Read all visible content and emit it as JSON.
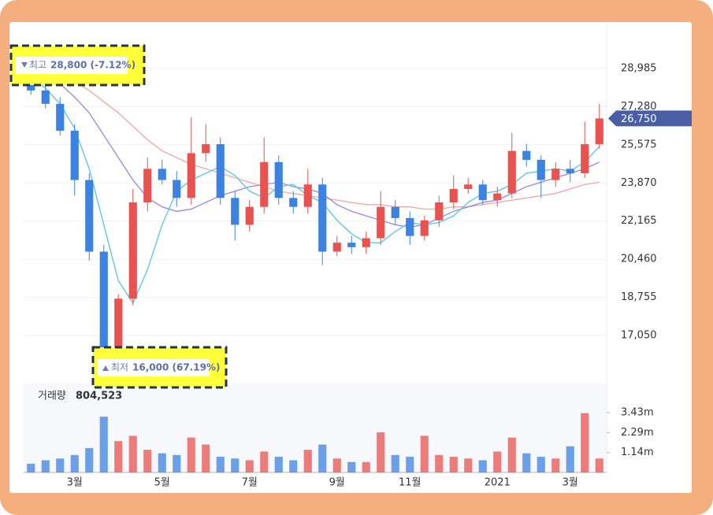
{
  "chart_data": {
    "type": "candlestick",
    "categories": [
      "",
      "",
      "",
      "3월",
      "",
      "",
      "",
      "",
      "",
      "5월",
      "",
      "",
      "",
      "",
      "",
      "7월",
      "",
      "",
      "",
      "",
      "",
      "9월",
      "",
      "",
      "",
      "",
      "11월",
      "",
      "",
      "",
      "",
      "",
      "2021",
      "",
      "",
      "",
      "",
      "3월",
      "",
      ""
    ],
    "open": [
      28500,
      28000,
      27400,
      26200,
      24000,
      20800,
      16500,
      18700,
      23000,
      24500,
      24000,
      23200,
      25200,
      25600,
      23200,
      22000,
      22800,
      24800,
      23200,
      22800,
      23800,
      20800,
      21200,
      21000,
      21400,
      22800,
      22300,
      21500,
      22200,
      23000,
      23600,
      23800,
      23100,
      23400,
      25300,
      24900,
      24000,
      24500,
      24300,
      25600
    ],
    "high": [
      28800,
      28300,
      27700,
      26500,
      24300,
      21100,
      18900,
      23600,
      25000,
      24900,
      24400,
      26800,
      26500,
      25900,
      23500,
      23100,
      25900,
      25100,
      23500,
      24500,
      24100,
      21500,
      21500,
      21700,
      23500,
      23100,
      22600,
      22400,
      23300,
      24200,
      24100,
      24000,
      23700,
      26100,
      25600,
      25100,
      24800,
      24900,
      26600,
      27400
    ],
    "low": [
      27800,
      27200,
      26000,
      23300,
      20400,
      16000,
      16200,
      18400,
      22600,
      23800,
      22800,
      22900,
      24800,
      22900,
      21300,
      21700,
      22500,
      22900,
      22500,
      22500,
      20200,
      20600,
      20700,
      20700,
      21100,
      22000,
      21100,
      21300,
      21900,
      22700,
      23400,
      22900,
      22800,
      23200,
      24600,
      23200,
      23700,
      23900,
      24100,
      25400
    ],
    "close": [
      28000,
      27400,
      26200,
      24000,
      20800,
      16500,
      18700,
      23000,
      24500,
      24000,
      23200,
      25200,
      25600,
      23200,
      22000,
      22800,
      24800,
      23200,
      22800,
      23800,
      20800,
      21200,
      21000,
      21400,
      22800,
      22300,
      21500,
      22200,
      23000,
      23600,
      23800,
      23100,
      23400,
      25300,
      24900,
      24000,
      24500,
      24300,
      25600,
      26750
    ],
    "up_color": "#e8534f",
    "down_color": "#3c82e0",
    "ylim": [
      14910,
      30985
    ],
    "yticks": [
      {
        "value": 17050,
        "label": "17,050"
      },
      {
        "value": 18755,
        "label": "18,755"
      },
      {
        "value": 20460,
        "label": "20,460"
      },
      {
        "value": 22165,
        "label": "22,165"
      },
      {
        "value": 23870,
        "label": "23,870"
      },
      {
        "value": 25575,
        "label": "25,575"
      },
      {
        "value": 27280,
        "label": "27,280"
      },
      {
        "value": 28985,
        "label": "28,985"
      }
    ],
    "grid": true,
    "moving_averages": [
      {
        "color": "#5cc9e3",
        "values": [
          28600,
          28100,
          27400,
          26300,
          24500,
          22000,
          19500,
          18500,
          20000,
          22000,
          23500,
          24000,
          24300,
          24600,
          24200,
          23500,
          23200,
          23700,
          23800,
          23300,
          23000,
          22200,
          21600,
          21200,
          21200,
          21700,
          22100,
          22000,
          22100,
          22400,
          23000,
          23400,
          23500,
          23800,
          24300,
          24400,
          24500,
          24400,
          24800,
          25500
        ]
      },
      {
        "color": "#9b8de0",
        "values": [
          29000,
          28700,
          28300,
          27700,
          27000,
          26000,
          25000,
          24000,
          23200,
          22800,
          22600,
          22700,
          23000,
          23300,
          23500,
          23700,
          23800,
          23900,
          23700,
          23600,
          23400,
          22900,
          22600,
          22400,
          22200,
          22000,
          21900,
          22000,
          22300,
          22600,
          22800,
          23000,
          23100,
          23400,
          23700,
          23900,
          24100,
          24300,
          24500,
          24800
        ]
      },
      {
        "color": "#f4a9a5",
        "values": [
          29500,
          29200,
          28800,
          28400,
          28000,
          27500,
          27000,
          26400,
          25800,
          25300,
          25000,
          24700,
          24500,
          24300,
          24100,
          23900,
          23700,
          23500,
          23400,
          23300,
          23200,
          23100,
          23000,
          22900,
          22900,
          22800,
          22800,
          22700,
          22700,
          22800,
          22800,
          22900,
          23000,
          23100,
          23200,
          23300,
          23400,
          23600,
          23800,
          23900
        ]
      }
    ],
    "last_price": {
      "value": 26750,
      "label": "26,750"
    },
    "high_mark": {
      "name": "최고",
      "text": "28,800 (-7.12%)"
    },
    "low_mark": {
      "name": "최저",
      "text": "16,000 (67.19%)"
    },
    "volume": {
      "label": "거래량",
      "last": {
        "value": 804523,
        "label": "804,523"
      },
      "values": [
        500000,
        700000,
        800000,
        1000000,
        1400000,
        3200000,
        1800000,
        2100000,
        1300000,
        1100000,
        1000000,
        2000000,
        1600000,
        900000,
        800000,
        700000,
        1200000,
        900000,
        700000,
        1300000,
        1600000,
        800000,
        600000,
        600000,
        2300000,
        1000000,
        900000,
        2100000,
        1000000,
        900000,
        800000,
        700000,
        1200000,
        2000000,
        1100000,
        900000,
        800000,
        1500000,
        3400000,
        800000
      ],
      "ylim": [
        0,
        5100000
      ],
      "yticks": [
        {
          "value": 1140000,
          "label": "1.14m"
        },
        {
          "value": 2290000,
          "label": "2.29m"
        },
        {
          "value": 3430000,
          "label": "3.43m"
        }
      ]
    }
  }
}
